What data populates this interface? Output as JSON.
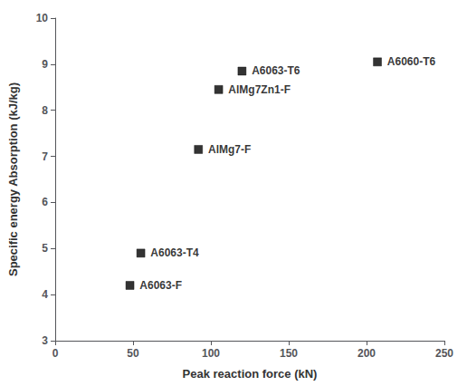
{
  "chart_data": {
    "type": "scatter",
    "x": [
      48,
      55,
      92,
      105,
      120,
      207
    ],
    "values": [
      4.2,
      4.9,
      7.15,
      8.45,
      8.85,
      9.05
    ],
    "labels": [
      "A6063-F",
      "A6063-T4",
      "AlMg7-F",
      "AlMg7Zn1-F",
      "A6063-T6",
      "A6060-T6"
    ],
    "xlabel": "Peak reaction force (kN)",
    "ylabel": "Specific energy Absorption (kJ/kg)",
    "xlim": [
      0,
      250
    ],
    "ylim": [
      3,
      10
    ],
    "xticks": [
      0,
      50,
      100,
      150,
      200,
      250
    ],
    "yticks": [
      3,
      4,
      5,
      6,
      7,
      8,
      9,
      10
    ],
    "color": "#000000",
    "marker": "square",
    "grid": false
  }
}
